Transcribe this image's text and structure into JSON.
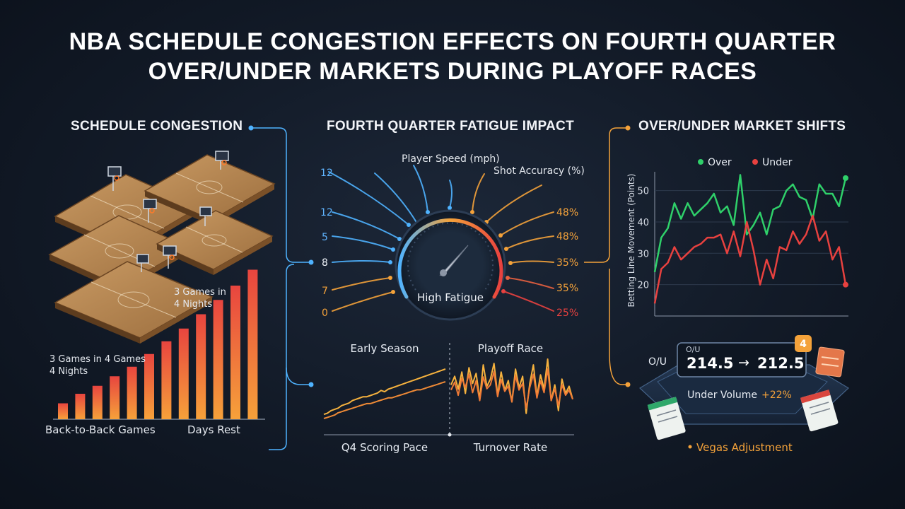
{
  "title_lines": [
    "NBA SCHEDULE CONGESTION EFFECTS ON FOURTH QUARTER",
    "OVER/UNDER MARKETS DURING PLAYOFF RACES"
  ],
  "sections": {
    "left": "SCHEDULE CONGESTION",
    "center": "FOURTH QUARTER FATIGUE IMPACT",
    "right": "OVER/UNDER MARKET SHIFTS"
  },
  "colors": {
    "accent_orange": "#f4a23a",
    "accent_blue": "#4fb3ff",
    "over_green": "#2fd06a",
    "under_red": "#e8413f"
  },
  "left_panel": {
    "courts_label": "3 Games in\n4 Nights",
    "bars_label": "3 Games in 4 Games\n4 Nights",
    "x_label_left": "Back-to-Back Games",
    "x_label_right": "Days Rest"
  },
  "gauge": {
    "label": "High Fatigue",
    "left_values": [
      "12",
      "12",
      "5",
      "8",
      "7",
      "0"
    ],
    "right_values": [
      "48%",
      "48%",
      "35%",
      "35%",
      "25%"
    ],
    "top_label_1": "Player Speed (mph)",
    "top_label_2": "Shot Accuracy (%)"
  },
  "pace_panel": {
    "label_early": "Early Season",
    "label_playoff": "Playoff Race",
    "label_q4": "Q4 Scoring Pace",
    "label_turnover": "Turnover Rate"
  },
  "market_panel": {
    "ou_label": "O/U",
    "ou_small": "O/U",
    "line_from": "214.5",
    "arrow": "→",
    "line_to": "212.5",
    "under_volume_label": "Under Volume",
    "under_volume_value": "+22%",
    "vegas_label": "Vegas Adjustment"
  },
  "chart_data": [
    {
      "type": "bar",
      "title": "",
      "xlabel": "",
      "ylabel": "",
      "categories": [
        "1",
        "2",
        "3",
        "4",
        "5",
        "6",
        "7",
        "8",
        "9",
        "10",
        "11",
        "12"
      ],
      "values": [
        1.0,
        1.6,
        2.1,
        2.7,
        3.3,
        4.1,
        4.9,
        5.7,
        6.6,
        7.5,
        8.4,
        9.4
      ],
      "ylim": [
        0,
        10
      ],
      "grid": false,
      "legend": "none"
    },
    {
      "type": "line",
      "title": "",
      "xlabel": "",
      "ylabel": "Betting Line Movement (Points)",
      "yticks": [
        20,
        30,
        40,
        50
      ],
      "ylim": [
        10,
        56
      ],
      "grid": true,
      "legend": "top",
      "x": [
        0,
        1,
        2,
        3,
        4,
        5,
        6,
        7,
        8,
        9,
        10,
        11,
        12,
        13,
        14,
        15,
        16,
        17,
        18,
        19,
        20,
        21,
        22,
        23,
        24,
        25,
        26,
        27,
        28,
        29
      ],
      "series": [
        {
          "name": "Over",
          "values": [
            24,
            35,
            38,
            46,
            41,
            46,
            42,
            44,
            46,
            49,
            43,
            45,
            39,
            55,
            36,
            39,
            43,
            36,
            44,
            45,
            50,
            52,
            48,
            47,
            41,
            52,
            49,
            49,
            45,
            54
          ]
        },
        {
          "name": "Under",
          "values": [
            14,
            25,
            27,
            32,
            28,
            30,
            32,
            33,
            35,
            35,
            36,
            30,
            37,
            29,
            40,
            31,
            20,
            28,
            22,
            32,
            31,
            37,
            33,
            36,
            42,
            34,
            37,
            28,
            32,
            20
          ]
        }
      ]
    },
    {
      "type": "line",
      "title": "",
      "xlabel": "",
      "ylabel": "",
      "grid": false,
      "legend": "none",
      "x": [
        0,
        1,
        2,
        3,
        4,
        5,
        6,
        7,
        8,
        9,
        10,
        11,
        12,
        13,
        14,
        15,
        16,
        17,
        18,
        19,
        20,
        21,
        22,
        23,
        24,
        25,
        26,
        27,
        28,
        29,
        30,
        31,
        32,
        33,
        34
      ],
      "series": [
        {
          "name": "",
          "values": [
            1,
            2,
            4,
            5,
            6,
            8,
            9,
            10,
            12,
            13,
            14,
            15,
            15,
            16,
            17,
            18,
            20,
            19,
            21,
            22,
            23,
            24,
            25,
            26,
            27,
            28,
            29,
            30,
            31,
            32,
            33,
            34,
            35,
            36,
            37
          ]
        },
        {
          "name": "",
          "values": [
            0,
            1,
            2,
            3,
            5,
            6,
            7,
            8,
            9,
            10,
            11,
            12,
            13,
            13,
            14,
            15,
            16,
            17,
            18,
            18,
            19,
            20,
            21,
            22,
            23,
            24,
            25,
            25,
            26,
            27,
            28,
            29,
            30,
            31,
            32
          ]
        },
        {
          "name": "",
          "values": [
            30,
            36,
            27,
            39,
            24,
            42,
            31,
            38,
            20,
            44,
            29,
            34,
            45,
            23,
            39,
            26,
            33,
            18,
            41,
            28,
            36,
            10,
            31,
            44,
            22,
            37,
            27,
            48,
            19,
            30,
            12,
            34,
            24,
            29,
            20
          ]
        },
        {
          "name": "",
          "values": [
            26,
            32,
            22,
            35,
            28,
            38,
            24,
            33,
            18,
            36,
            27,
            30,
            40,
            21,
            34,
            25,
            29,
            17,
            37,
            26,
            31,
            12,
            28,
            38,
            20,
            33,
            24,
            42,
            18,
            27,
            14,
            30,
            22,
            26,
            19
          ]
        }
      ]
    }
  ]
}
